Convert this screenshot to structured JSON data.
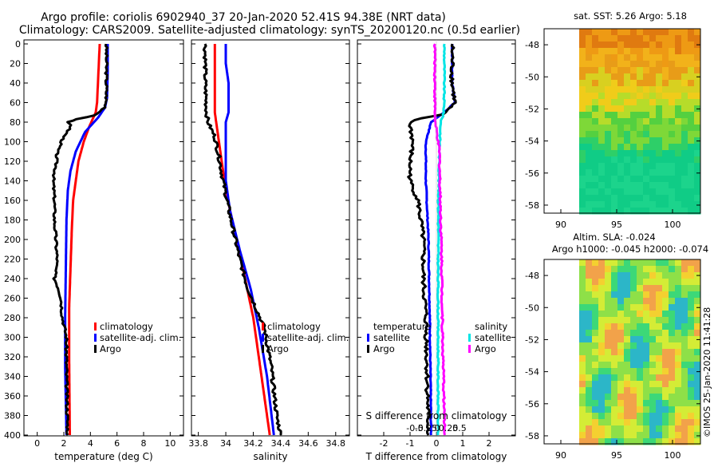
{
  "title": {
    "line1": "Argo profile: coriolis 6902940_37 20-Jan-2020 52.41S 94.38E (NRT data)",
    "line2": "Climatology: CARS2009. Satellite-adjusted climatology: synTS_20200120.nc (0.5d earlier)"
  },
  "colors": {
    "climatology": "#ff0000",
    "satellite": "#0000ff",
    "argo": "#000000",
    "salt_satellite": "#00e5e5",
    "salt_argo": "#ff00ff"
  },
  "chart_data": [
    {
      "type": "line",
      "id": "temperature",
      "xlabel": "temperature (deg C)",
      "xlim": [
        -1,
        11
      ],
      "ylim": [
        400,
        0
      ],
      "xticks": [
        "0",
        "2",
        "4",
        "6",
        "8",
        "10"
      ],
      "xtick_values": [
        0,
        2,
        4,
        6,
        8,
        10
      ],
      "yticks": [
        "0",
        "20",
        "40",
        "60",
        "80",
        "100",
        "120",
        "140",
        "160",
        "180",
        "200",
        "220",
        "240",
        "260",
        "280",
        "300",
        "320",
        "340",
        "360",
        "380",
        "400"
      ],
      "ytick_values": [
        0,
        20,
        40,
        60,
        80,
        100,
        120,
        140,
        160,
        180,
        200,
        220,
        240,
        260,
        280,
        300,
        320,
        340,
        360,
        380,
        400
      ],
      "legend": [
        "climatology",
        "satellite-adj. clim.",
        "Argo"
      ],
      "series": [
        {
          "name": "climatology",
          "color": "#ff0000",
          "points": [
            [
              4.7,
              0
            ],
            [
              4.6,
              30
            ],
            [
              4.5,
              60
            ],
            [
              4.4,
              70
            ],
            [
              3.9,
              85
            ],
            [
              3.5,
              100
            ],
            [
              3.1,
              120
            ],
            [
              2.9,
              140
            ],
            [
              2.7,
              160
            ],
            [
              2.6,
              190
            ],
            [
              2.5,
              230
            ],
            [
              2.4,
              270
            ],
            [
              2.4,
              320
            ],
            [
              2.45,
              400
            ]
          ]
        },
        {
          "name": "satellite-adj. clim.",
          "color": "#0000ff",
          "points": [
            [
              5.3,
              0
            ],
            [
              5.3,
              30
            ],
            [
              5.25,
              55
            ],
            [
              5.1,
              65
            ],
            [
              4.6,
              75
            ],
            [
              3.6,
              90
            ],
            [
              2.9,
              110
            ],
            [
              2.5,
              130
            ],
            [
              2.3,
              150
            ],
            [
              2.2,
              180
            ],
            [
              2.15,
              230
            ],
            [
              2.1,
              280
            ],
            [
              2.1,
              330
            ],
            [
              2.2,
              400
            ]
          ]
        },
        {
          "name": "Argo",
          "color": "#000000",
          "points": [
            [
              5.2,
              0
            ],
            [
              5.2,
              30
            ],
            [
              5.2,
              55
            ],
            [
              5.1,
              65
            ],
            [
              4.4,
              73
            ],
            [
              3.0,
              77
            ],
            [
              2.2,
              80
            ],
            [
              2.6,
              83
            ],
            [
              2.0,
              95
            ],
            [
              1.5,
              110
            ],
            [
              1.4,
              125
            ],
            [
              1.2,
              140
            ],
            [
              1.3,
              160
            ],
            [
              1.3,
              180
            ],
            [
              1.4,
              200
            ],
            [
              1.5,
              220
            ],
            [
              1.3,
              240
            ],
            [
              1.6,
              250
            ],
            [
              1.8,
              260
            ],
            [
              1.9,
              280
            ],
            [
              2.2,
              300
            ],
            [
              2.2,
              340
            ],
            [
              2.3,
              400
            ]
          ]
        }
      ]
    },
    {
      "type": "line",
      "id": "salinity",
      "xlabel": "salinity",
      "xlim": [
        33.75,
        34.9
      ],
      "ylim": [
        400,
        0
      ],
      "xticks": [
        "33.8",
        "34",
        "34.2",
        "34.4",
        "34.6",
        "34.8"
      ],
      "xtick_values": [
        33.8,
        34.0,
        34.2,
        34.4,
        34.6,
        34.8
      ],
      "legend": [
        "climatology",
        "satellite-adj. clim.",
        "Argo"
      ],
      "series": [
        {
          "name": "climatology",
          "color": "#ff0000",
          "points": [
            [
              33.92,
              0
            ],
            [
              33.92,
              40
            ],
            [
              33.92,
              70
            ],
            [
              33.93,
              80
            ],
            [
              33.96,
              110
            ],
            [
              33.99,
              140
            ],
            [
              34.03,
              170
            ],
            [
              34.08,
              200
            ],
            [
              34.14,
              240
            ],
            [
              34.2,
              280
            ],
            [
              34.26,
              340
            ],
            [
              34.32,
              400
            ]
          ]
        },
        {
          "name": "satellite-adj. clim.",
          "color": "#0000ff",
          "points": [
            [
              34.0,
              0
            ],
            [
              34.0,
              20
            ],
            [
              34.02,
              40
            ],
            [
              34.02,
              70
            ],
            [
              34.0,
              80
            ],
            [
              34.0,
              100
            ],
            [
              34.0,
              140
            ],
            [
              34.03,
              170
            ],
            [
              34.1,
              210
            ],
            [
              34.18,
              250
            ],
            [
              34.24,
              290
            ],
            [
              34.3,
              340
            ],
            [
              34.35,
              400
            ]
          ]
        },
        {
          "name": "Argo",
          "color": "#000000",
          "points": [
            [
              33.85,
              0
            ],
            [
              33.85,
              40
            ],
            [
              33.86,
              70
            ],
            [
              33.87,
              80
            ],
            [
              33.92,
              95
            ],
            [
              33.95,
              115
            ],
            [
              33.98,
              140
            ],
            [
              34.03,
              175
            ],
            [
              34.1,
              220
            ],
            [
              34.16,
              250
            ],
            [
              34.22,
              270
            ],
            [
              34.28,
              290
            ],
            [
              34.33,
              330
            ],
            [
              34.37,
              380
            ],
            [
              34.4,
              400
            ]
          ]
        }
      ]
    },
    {
      "type": "line",
      "id": "difference",
      "xlabel": "T difference from climatology",
      "top_axis_label": "S difference from climatology",
      "xlim": [
        -3,
        3
      ],
      "ylim": [
        400,
        0
      ],
      "xticks": [
        "-2",
        "-1",
        "0",
        "1",
        "2"
      ],
      "xtick_values": [
        -2,
        -1,
        0,
        1,
        2
      ],
      "sticks": [
        "-0.5",
        "-0.25",
        "0",
        "0.25",
        "0.5"
      ],
      "stick_values": [
        -0.5,
        -0.25,
        0,
        0.25,
        0.5
      ],
      "legend_temperature": [
        "temperature",
        "satellite",
        "Argo"
      ],
      "legend_salinity": [
        "salinity",
        "satellite",
        "Argo"
      ],
      "series": [
        {
          "name": "T satellite",
          "color": "#0000ff",
          "points": [
            [
              0.6,
              0
            ],
            [
              0.6,
              40
            ],
            [
              0.7,
              60
            ],
            [
              0.3,
              70
            ],
            [
              -0.2,
              80
            ],
            [
              -0.4,
              100
            ],
            [
              -0.4,
              140
            ],
            [
              -0.3,
              200
            ],
            [
              -0.25,
              280
            ],
            [
              -0.2,
              400
            ]
          ]
        },
        {
          "name": "T Argo",
          "color": "#000000",
          "points": [
            [
              0.6,
              0
            ],
            [
              0.6,
              40
            ],
            [
              0.7,
              60
            ],
            [
              0.2,
              72
            ],
            [
              -0.9,
              78
            ],
            [
              -1.0,
              82
            ],
            [
              -0.9,
              100
            ],
            [
              -1.0,
              120
            ],
            [
              -1.0,
              140
            ],
            [
              -0.7,
              160
            ],
            [
              -0.5,
              200
            ],
            [
              -0.5,
              240
            ],
            [
              -0.4,
              280
            ],
            [
              -0.3,
              400
            ]
          ]
        },
        {
          "name": "S satellite",
          "color": "#00e5e5",
          "points": [
            [
              0.16,
              0
            ],
            [
              0.16,
              40
            ],
            [
              0.15,
              70
            ],
            [
              0.08,
              80
            ],
            [
              0.05,
              110
            ],
            [
              0.03,
              160
            ],
            [
              0.02,
              240
            ],
            [
              0.02,
              300
            ],
            [
              0.02,
              400
            ]
          ]
        },
        {
          "name": "S Argo",
          "color": "#ff00ff",
          "points": [
            [
              -0.05,
              0
            ],
            [
              -0.05,
              40
            ],
            [
              -0.05,
              70
            ],
            [
              -0.04,
              82
            ],
            [
              0.05,
              110
            ],
            [
              0.07,
              160
            ],
            [
              0.1,
              220
            ],
            [
              0.12,
              300
            ],
            [
              0.16,
              380
            ],
            [
              0.17,
              400
            ]
          ]
        }
      ]
    },
    {
      "type": "heatmap",
      "id": "sst-map",
      "title": "sat. SST: 5.26 Argo: 5.18",
      "xticks": [
        "90",
        "95",
        "100"
      ],
      "xtick_values": [
        90,
        95,
        100
      ],
      "yticks": [
        "-48",
        "-50",
        "-52",
        "-54",
        "-56",
        "-58"
      ],
      "ytick_values": [
        -48,
        -50,
        -52,
        -54,
        -56,
        -58
      ],
      "xlim": [
        88.5,
        102.5
      ],
      "ylim": [
        -58.5,
        -47
      ]
    },
    {
      "type": "heatmap",
      "id": "sla-map",
      "title": "Altim. SLA: -0.024",
      "subtitle": "Argo h1000: -0.045 h2000: -0.074",
      "xticks": [
        "90",
        "95",
        "100"
      ],
      "xtick_values": [
        90,
        95,
        100
      ],
      "yticks": [
        "-48",
        "-50",
        "-52",
        "-54",
        "-56",
        "-58"
      ],
      "ytick_values": [
        -48,
        -50,
        -52,
        -54,
        -56,
        -58
      ],
      "xlim": [
        88.5,
        102.5
      ],
      "ylim": [
        -58.5,
        -47
      ]
    }
  ],
  "credit": "©IMOS 25-Jan-2020 11:41:28"
}
